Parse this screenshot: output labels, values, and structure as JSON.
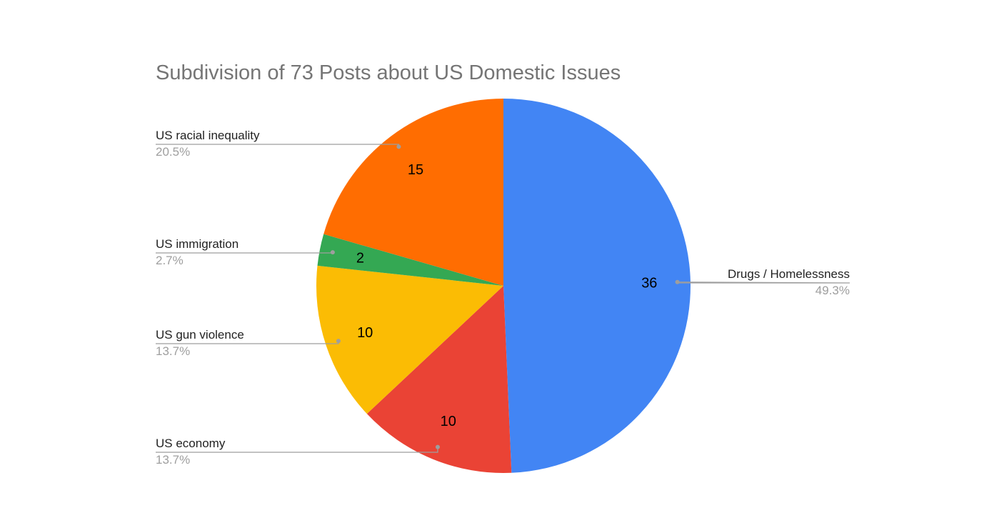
{
  "chart_data": {
    "type": "pie",
    "title": "Subdivision of 73 Posts about US Domestic Issues",
    "total": 73,
    "start_angle_deg": 0,
    "direction": "clockwise",
    "slices": [
      {
        "label": "Drugs / Homelessness",
        "value": 36,
        "value_label": "36",
        "percent_label": "49.3%",
        "color": "#4285F4",
        "legend_side": "right"
      },
      {
        "label": "US economy",
        "value": 10,
        "value_label": "10",
        "percent_label": "13.7%",
        "color": "#EA4335",
        "legend_side": "left"
      },
      {
        "label": "US gun violence",
        "value": 10,
        "value_label": "10",
        "percent_label": "13.7%",
        "color": "#FBBC04",
        "legend_side": "left"
      },
      {
        "label": "US immigration",
        "value": 2,
        "value_label": "2",
        "percent_label": "2.7%",
        "color": "#34A853",
        "legend_side": "left"
      },
      {
        "label": "US racial inequality",
        "value": 15,
        "value_label": "15",
        "percent_label": "20.5%",
        "color": "#FF6D01",
        "legend_side": "left"
      }
    ]
  }
}
